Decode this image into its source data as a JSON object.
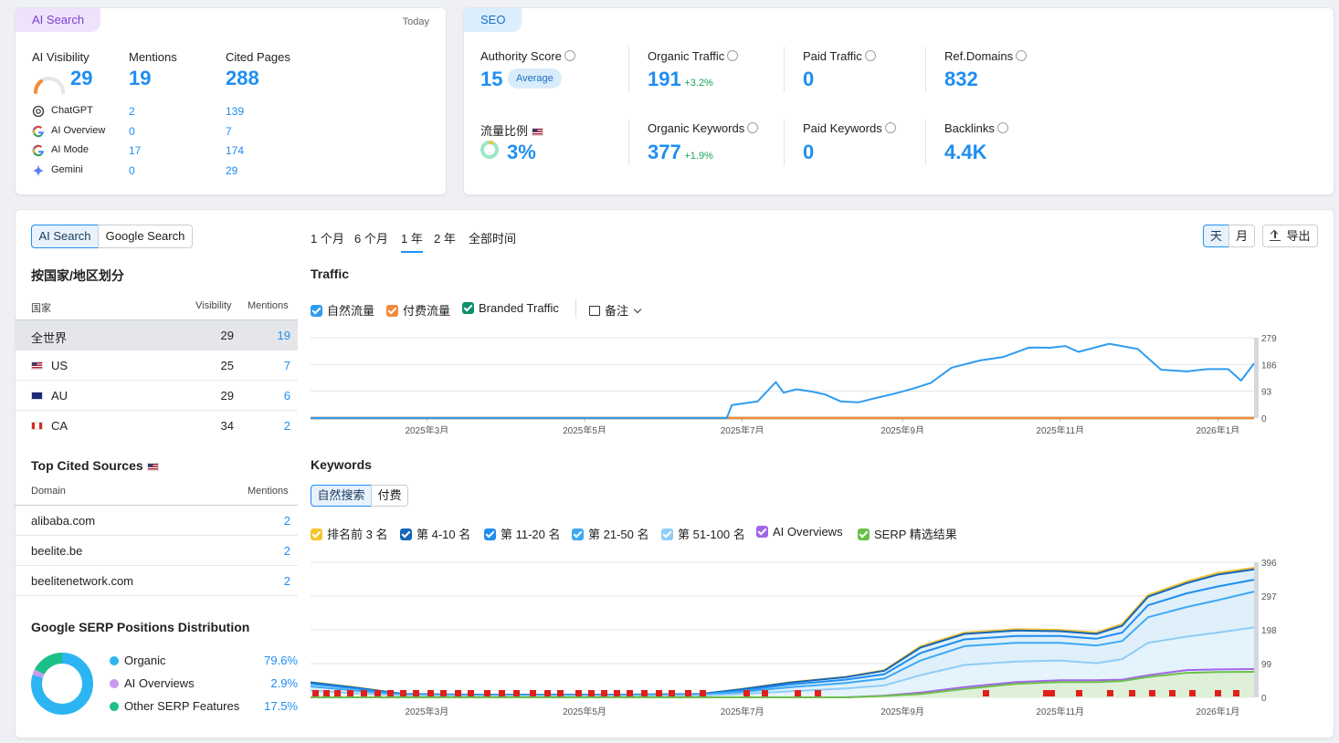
{
  "ai_search_card": {
    "tag": "AI Search",
    "date": "Today",
    "metrics": [
      {
        "label": "AI Visibility",
        "value": "29"
      },
      {
        "label": "Mentions",
        "value": "19"
      },
      {
        "label": "Cited Pages",
        "value": "288"
      }
    ],
    "visibility_gauge": 0.29,
    "platforms": [
      {
        "name": "ChatGPT",
        "icon": "chatgpt-icon",
        "mentions": "2",
        "cited": "139"
      },
      {
        "name": "AI Overview",
        "icon": "google-icon",
        "mentions": "0",
        "cited": "7"
      },
      {
        "name": "AI Mode",
        "icon": "google-icon",
        "mentions": "17",
        "cited": "174"
      },
      {
        "name": "Gemini",
        "icon": "gemini-icon",
        "mentions": "0",
        "cited": "29"
      }
    ]
  },
  "seo_card": {
    "tag": "SEO",
    "metrics": [
      {
        "label": "Authority Score",
        "value": "15",
        "badge": "Average"
      },
      {
        "label": "Organic Traffic",
        "value": "191",
        "delta": "+3.2%"
      },
      {
        "label": "Paid Traffic",
        "value": "0"
      },
      {
        "label": "Ref.Domains",
        "value": "832"
      },
      {
        "label": "流量比例",
        "value": "3%"
      },
      {
        "label": "Organic Keywords",
        "value": "377",
        "delta": "+1.9%"
      },
      {
        "label": "Paid Keywords",
        "value": "0"
      },
      {
        "label": "Backlinks",
        "value": "4.4K"
      }
    ],
    "traffic_share": 0.03
  },
  "left_panel": {
    "toggle": [
      "AI Search",
      "Google Search"
    ],
    "country_title": "按国家/地区划分",
    "country_headers": [
      "国家",
      "Visibility",
      "Mentions"
    ],
    "countries": [
      {
        "name": "全世界",
        "visibility": "29",
        "mentions": "19"
      },
      {
        "name": "US",
        "visibility": "25",
        "mentions": "7"
      },
      {
        "name": "AU",
        "visibility": "29",
        "mentions": "6"
      },
      {
        "name": "CA",
        "visibility": "34",
        "mentions": "2"
      }
    ],
    "sources_title": "Top Cited Sources",
    "sources_headers": [
      "Domain",
      "Mentions"
    ],
    "sources": [
      {
        "domain": "alibaba.com",
        "mentions": "2"
      },
      {
        "domain": "beelite.be",
        "mentions": "2"
      },
      {
        "domain": "beelitenetwork.com",
        "mentions": "2"
      }
    ],
    "serp_title": "Google SERP Positions Distribution",
    "serp": [
      {
        "label": "Organic",
        "value": "79.6%",
        "fraction": 0.796,
        "color": "#2cb5f2"
      },
      {
        "label": "AI Overviews",
        "value": "2.9%",
        "fraction": 0.029,
        "color": "#c79af0"
      },
      {
        "label": "Other SERP Features",
        "value": "17.5%",
        "fraction": 0.175,
        "color": "#1dbf8a"
      }
    ]
  },
  "range_tabs": [
    "1 个月",
    "6 个月",
    "1 年",
    "2 年",
    "全部时间"
  ],
  "range_selected": "1 年",
  "granularity": [
    "天",
    "月"
  ],
  "export_label": "导出",
  "traffic": {
    "title": "Traffic",
    "legend": [
      {
        "label": "自然流量",
        "color": "#2f9cf0"
      },
      {
        "label": "付费流量",
        "color": "#f58a3a"
      },
      {
        "label": "Branded Traffic",
        "color": "#0c8f6e"
      }
    ],
    "notes_label": "备注"
  },
  "keywords": {
    "title": "Keywords",
    "tabs": [
      "自然搜索",
      "付费"
    ],
    "legend": [
      {
        "label": "排名前 3 名",
        "color": "#f4c42f"
      },
      {
        "label": "第 4-10 名",
        "color": "#1565b8"
      },
      {
        "label": "第 11-20 名",
        "color": "#1f8ef1"
      },
      {
        "label": "第 21-50 名",
        "color": "#3ea8f3"
      },
      {
        "label": "第 51-100 名",
        "color": "#8fcdf7"
      },
      {
        "label": "AI Overviews",
        "color": "#a266e8"
      },
      {
        "label": "SERP 精选结果",
        "color": "#6cc04a"
      }
    ]
  },
  "chart_data": [
    {
      "type": "line",
      "title": "Traffic",
      "x_ticks": [
        "2025年3月",
        "2025年5月",
        "2025年7月",
        "2025年9月",
        "2025年11月",
        "2026年1月"
      ],
      "y_ticks": [
        "279",
        "186",
        "93",
        "0"
      ],
      "ylim": [
        0,
        279
      ],
      "x_range": [
        "2025-01-15",
        "2026-01-15"
      ],
      "series": [
        {
          "name": "自然流量",
          "color": "#2f9cf0",
          "x": [
            "2025-01-15",
            "2025-06-25",
            "2025-06-27",
            "2025-07-07",
            "2025-07-14",
            "2025-07-17",
            "2025-07-22",
            "2025-07-28",
            "2025-08-02",
            "2025-08-08",
            "2025-08-15",
            "2025-08-22",
            "2025-08-29",
            "2025-09-05",
            "2025-09-12",
            "2025-09-20",
            "2025-10-01",
            "2025-10-10",
            "2025-10-20",
            "2025-10-28",
            "2025-11-03",
            "2025-11-08",
            "2025-11-20",
            "2025-12-01",
            "2025-12-10",
            "2025-12-20",
            "2025-12-28",
            "2026-01-05",
            "2026-01-10",
            "2026-01-15"
          ],
          "y": [
            0,
            0,
            45,
            58,
            125,
            88,
            100,
            92,
            82,
            58,
            55,
            70,
            85,
            102,
            122,
            175,
            200,
            212,
            245,
            244,
            250,
            230,
            258,
            240,
            168,
            162,
            170,
            170,
            130,
            190
          ]
        },
        {
          "name": "付费流量",
          "color": "#f58a3a",
          "x": [
            "2025-01-15",
            "2026-01-15"
          ],
          "y": [
            0,
            0
          ]
        },
        {
          "name": "Branded Traffic",
          "color": "#0c8f6e",
          "x": [
            "2025-01-15",
            "2026-01-15"
          ],
          "y": [
            0,
            0
          ]
        }
      ]
    },
    {
      "type": "area",
      "title": "Keywords",
      "x_ticks": [
        "2025年3月",
        "2025年5月",
        "2025年7月",
        "2025年9月",
        "2025年11月",
        "2026年1月"
      ],
      "y_ticks": [
        "396",
        "297",
        "198",
        "99",
        "0"
      ],
      "ylim": [
        0,
        396
      ],
      "x_range": [
        "2025-01-15",
        "2026-01-15"
      ],
      "x": [
        "2025-01-15",
        "2025-02-01",
        "2025-02-20",
        "2025-03-15",
        "2025-04-15",
        "2025-05-15",
        "2025-06-15",
        "2025-07-01",
        "2025-07-20",
        "2025-08-10",
        "2025-08-25",
        "2025-09-08",
        "2025-09-25",
        "2025-10-15",
        "2025-11-01",
        "2025-11-15",
        "2025-11-25",
        "2025-12-05",
        "2025-12-20",
        "2026-01-01",
        "2026-01-15"
      ],
      "series": [
        {
          "name": "排名前 3 名",
          "color": "#f4c42f",
          "y": [
            45,
            30,
            10,
            8,
            8,
            8,
            10,
            25,
            45,
            60,
            80,
            150,
            190,
            200,
            198,
            190,
            215,
            300,
            340,
            365,
            380
          ]
        },
        {
          "name": "第 4-10 名",
          "color": "#1565b8",
          "y": [
            44,
            29,
            10,
            8,
            8,
            8,
            10,
            24,
            44,
            59,
            78,
            146,
            186,
            196,
            194,
            186,
            210,
            295,
            335,
            360,
            375
          ]
        },
        {
          "name": "第 11-20 名",
          "color": "#1f8ef1",
          "y": [
            40,
            26,
            9,
            7,
            7,
            7,
            9,
            20,
            38,
            52,
            68,
            130,
            170,
            180,
            180,
            172,
            190,
            270,
            305,
            325,
            345
          ]
        },
        {
          "name": "第 21-50 名",
          "color": "#3ea8f3",
          "y": [
            32,
            20,
            7,
            6,
            6,
            6,
            8,
            16,
            30,
            42,
            55,
            108,
            150,
            160,
            160,
            152,
            165,
            235,
            265,
            285,
            310
          ]
        },
        {
          "name": "第 51-100 名",
          "color": "#8fcdf7",
          "y": [
            20,
            12,
            5,
            4,
            4,
            4,
            5,
            10,
            18,
            26,
            35,
            65,
            95,
            105,
            108,
            100,
            112,
            160,
            178,
            190,
            205
          ]
        },
        {
          "name": "AI Overviews",
          "color": "#a266e8",
          "y": [
            0,
            0,
            0,
            0,
            0,
            0,
            0,
            0,
            0,
            0,
            5,
            14,
            30,
            45,
            50,
            50,
            52,
            65,
            80,
            82,
            83
          ]
        },
        {
          "name": "SERP 精选结果",
          "color": "#6cc04a",
          "y": [
            0,
            0,
            0,
            0,
            0,
            0,
            0,
            0,
            0,
            0,
            4,
            10,
            25,
            40,
            45,
            45,
            48,
            60,
            72,
            74,
            75
          ]
        }
      ]
    }
  ]
}
